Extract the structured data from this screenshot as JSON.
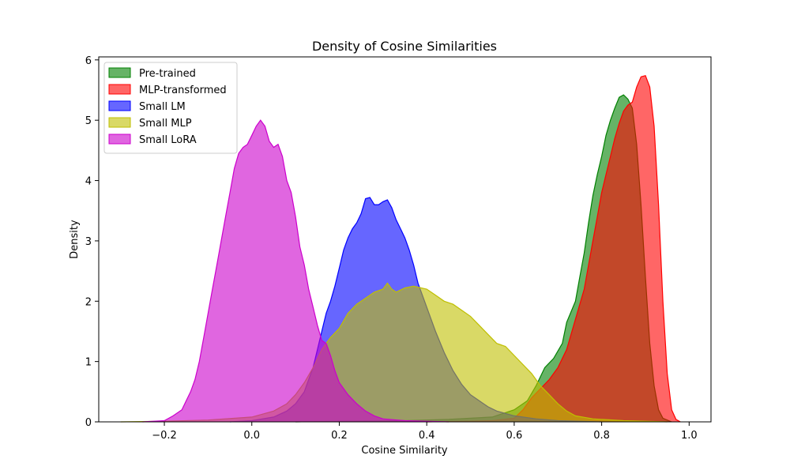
{
  "chart_data": {
    "type": "area",
    "title": "Density of Cosine Similarities",
    "xlabel": "Cosine Similarity",
    "ylabel": "Density",
    "xlim": [
      -0.35,
      1.05
    ],
    "ylim": [
      0,
      6.05
    ],
    "xticks": [
      -0.2,
      0.0,
      0.2,
      0.4,
      0.6,
      0.8,
      1.0
    ],
    "xtick_labels": [
      "−0.2",
      "0.0",
      "0.2",
      "0.4",
      "0.6",
      "0.8",
      "1.0"
    ],
    "yticks": [
      0,
      1,
      2,
      3,
      4,
      5,
      6
    ],
    "ytick_labels": [
      "0",
      "1",
      "2",
      "3",
      "4",
      "5",
      "6"
    ],
    "grid": false,
    "legend_position": "top-left",
    "series": [
      {
        "name": "Pre-trained",
        "color": "#008000",
        "fill_opacity": 0.6,
        "points": [
          [
            0.1,
            0
          ],
          [
            0.2,
            0.01
          ],
          [
            0.35,
            0.02
          ],
          [
            0.45,
            0.04
          ],
          [
            0.55,
            0.08
          ],
          [
            0.6,
            0.2
          ],
          [
            0.63,
            0.35
          ],
          [
            0.65,
            0.6
          ],
          [
            0.67,
            0.9
          ],
          [
            0.69,
            1.05
          ],
          [
            0.71,
            1.3
          ],
          [
            0.72,
            1.65
          ],
          [
            0.74,
            2.0
          ],
          [
            0.75,
            2.4
          ],
          [
            0.76,
            2.8
          ],
          [
            0.77,
            3.3
          ],
          [
            0.78,
            3.75
          ],
          [
            0.79,
            4.1
          ],
          [
            0.8,
            4.4
          ],
          [
            0.81,
            4.75
          ],
          [
            0.82,
            5.0
          ],
          [
            0.83,
            5.2
          ],
          [
            0.84,
            5.38
          ],
          [
            0.85,
            5.42
          ],
          [
            0.86,
            5.35
          ],
          [
            0.87,
            5.2
          ],
          [
            0.88,
            4.6
          ],
          [
            0.89,
            3.6
          ],
          [
            0.9,
            2.4
          ],
          [
            0.91,
            1.3
          ],
          [
            0.92,
            0.6
          ],
          [
            0.93,
            0.2
          ],
          [
            0.94,
            0.06
          ],
          [
            0.96,
            0
          ]
        ]
      },
      {
        "name": "MLP-transformed",
        "color": "#ff0000",
        "fill_opacity": 0.6,
        "points": [
          [
            0.4,
            0
          ],
          [
            0.5,
            0.01
          ],
          [
            0.55,
            0.02
          ],
          [
            0.6,
            0.06
          ],
          [
            0.62,
            0.2
          ],
          [
            0.64,
            0.4
          ],
          [
            0.66,
            0.55
          ],
          [
            0.68,
            0.7
          ],
          [
            0.7,
            0.9
          ],
          [
            0.72,
            1.2
          ],
          [
            0.74,
            1.7
          ],
          [
            0.76,
            2.2
          ],
          [
            0.77,
            2.6
          ],
          [
            0.78,
            3.0
          ],
          [
            0.79,
            3.4
          ],
          [
            0.8,
            3.8
          ],
          [
            0.81,
            4.1
          ],
          [
            0.82,
            4.4
          ],
          [
            0.83,
            4.7
          ],
          [
            0.84,
            4.95
          ],
          [
            0.85,
            5.15
          ],
          [
            0.86,
            5.25
          ],
          [
            0.87,
            5.3
          ],
          [
            0.88,
            5.55
          ],
          [
            0.89,
            5.72
          ],
          [
            0.9,
            5.74
          ],
          [
            0.91,
            5.55
          ],
          [
            0.92,
            4.9
          ],
          [
            0.93,
            3.6
          ],
          [
            0.94,
            2.0
          ],
          [
            0.95,
            0.8
          ],
          [
            0.96,
            0.2
          ],
          [
            0.97,
            0.04
          ],
          [
            0.98,
            0
          ]
        ]
      },
      {
        "name": "Small LM",
        "color": "#0000ff",
        "fill_opacity": 0.6,
        "points": [
          [
            -0.05,
            0
          ],
          [
            0.0,
            0.02
          ],
          [
            0.05,
            0.08
          ],
          [
            0.08,
            0.18
          ],
          [
            0.1,
            0.3
          ],
          [
            0.12,
            0.5
          ],
          [
            0.13,
            0.7
          ],
          [
            0.14,
            0.9
          ],
          [
            0.15,
            1.2
          ],
          [
            0.16,
            1.5
          ],
          [
            0.17,
            1.8
          ],
          [
            0.18,
            2.0
          ],
          [
            0.19,
            2.25
          ],
          [
            0.2,
            2.55
          ],
          [
            0.21,
            2.85
          ],
          [
            0.22,
            3.05
          ],
          [
            0.23,
            3.2
          ],
          [
            0.24,
            3.3
          ],
          [
            0.25,
            3.45
          ],
          [
            0.26,
            3.7
          ],
          [
            0.27,
            3.72
          ],
          [
            0.28,
            3.6
          ],
          [
            0.29,
            3.6
          ],
          [
            0.3,
            3.65
          ],
          [
            0.31,
            3.68
          ],
          [
            0.32,
            3.55
          ],
          [
            0.33,
            3.35
          ],
          [
            0.34,
            3.2
          ],
          [
            0.35,
            3.05
          ],
          [
            0.36,
            2.85
          ],
          [
            0.37,
            2.6
          ],
          [
            0.38,
            2.3
          ],
          [
            0.4,
            1.9
          ],
          [
            0.42,
            1.5
          ],
          [
            0.44,
            1.15
          ],
          [
            0.46,
            0.85
          ],
          [
            0.48,
            0.62
          ],
          [
            0.5,
            0.45
          ],
          [
            0.52,
            0.35
          ],
          [
            0.54,
            0.25
          ],
          [
            0.56,
            0.18
          ],
          [
            0.6,
            0.1
          ],
          [
            0.65,
            0.05
          ],
          [
            0.7,
            0.02
          ],
          [
            0.8,
            0
          ]
        ]
      },
      {
        "name": "Small MLP",
        "color": "#bfbf00",
        "fill_opacity": 0.6,
        "points": [
          [
            -0.3,
            0
          ],
          [
            -0.2,
            0.01
          ],
          [
            -0.1,
            0.03
          ],
          [
            0.0,
            0.08
          ],
          [
            0.05,
            0.18
          ],
          [
            0.08,
            0.3
          ],
          [
            0.1,
            0.45
          ],
          [
            0.12,
            0.65
          ],
          [
            0.14,
            0.9
          ],
          [
            0.16,
            1.2
          ],
          [
            0.18,
            1.4
          ],
          [
            0.2,
            1.55
          ],
          [
            0.22,
            1.8
          ],
          [
            0.24,
            1.95
          ],
          [
            0.26,
            2.05
          ],
          [
            0.28,
            2.15
          ],
          [
            0.3,
            2.2
          ],
          [
            0.31,
            2.3
          ],
          [
            0.32,
            2.2
          ],
          [
            0.33,
            2.15
          ],
          [
            0.35,
            2.22
          ],
          [
            0.37,
            2.25
          ],
          [
            0.4,
            2.2
          ],
          [
            0.42,
            2.1
          ],
          [
            0.44,
            2.0
          ],
          [
            0.46,
            1.95
          ],
          [
            0.48,
            1.85
          ],
          [
            0.5,
            1.75
          ],
          [
            0.52,
            1.6
          ],
          [
            0.54,
            1.45
          ],
          [
            0.56,
            1.3
          ],
          [
            0.58,
            1.25
          ],
          [
            0.6,
            1.1
          ],
          [
            0.62,
            0.95
          ],
          [
            0.64,
            0.8
          ],
          [
            0.66,
            0.6
          ],
          [
            0.68,
            0.45
          ],
          [
            0.7,
            0.3
          ],
          [
            0.72,
            0.18
          ],
          [
            0.74,
            0.1
          ],
          [
            0.78,
            0.05
          ],
          [
            0.85,
            0.02
          ],
          [
            0.95,
            0
          ]
        ]
      },
      {
        "name": "Small LoRA",
        "color": "#cc00cc",
        "fill_opacity": 0.6,
        "points": [
          [
            -0.25,
            0
          ],
          [
            -0.2,
            0.02
          ],
          [
            -0.18,
            0.1
          ],
          [
            -0.16,
            0.2
          ],
          [
            -0.15,
            0.35
          ],
          [
            -0.14,
            0.5
          ],
          [
            -0.13,
            0.7
          ],
          [
            -0.12,
            1.0
          ],
          [
            -0.11,
            1.4
          ],
          [
            -0.1,
            1.8
          ],
          [
            -0.09,
            2.2
          ],
          [
            -0.08,
            2.6
          ],
          [
            -0.07,
            3.0
          ],
          [
            -0.06,
            3.4
          ],
          [
            -0.05,
            3.8
          ],
          [
            -0.04,
            4.2
          ],
          [
            -0.03,
            4.45
          ],
          [
            -0.02,
            4.55
          ],
          [
            -0.01,
            4.6
          ],
          [
            0.0,
            4.75
          ],
          [
            0.01,
            4.9
          ],
          [
            0.02,
            5.0
          ],
          [
            0.03,
            4.9
          ],
          [
            0.04,
            4.65
          ],
          [
            0.05,
            4.55
          ],
          [
            0.06,
            4.6
          ],
          [
            0.07,
            4.4
          ],
          [
            0.08,
            4.0
          ],
          [
            0.09,
            3.8
          ],
          [
            0.1,
            3.4
          ],
          [
            0.11,
            2.9
          ],
          [
            0.12,
            2.6
          ],
          [
            0.13,
            2.2
          ],
          [
            0.14,
            1.9
          ],
          [
            0.15,
            1.6
          ],
          [
            0.16,
            1.35
          ],
          [
            0.17,
            1.3
          ],
          [
            0.18,
            1.1
          ],
          [
            0.19,
            0.85
          ],
          [
            0.2,
            0.65
          ],
          [
            0.22,
            0.45
          ],
          [
            0.24,
            0.3
          ],
          [
            0.26,
            0.18
          ],
          [
            0.28,
            0.1
          ],
          [
            0.3,
            0.05
          ],
          [
            0.35,
            0.02
          ],
          [
            0.45,
            0
          ]
        ]
      }
    ]
  }
}
